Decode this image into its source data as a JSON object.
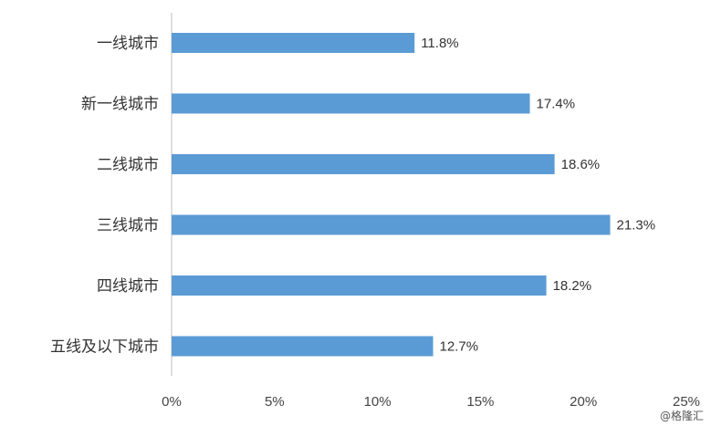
{
  "chart_data": {
    "type": "bar",
    "orientation": "horizontal",
    "categories": [
      "一线城市",
      "新一线城市",
      "二线城市",
      "三线城市",
      "四线城市",
      "五线及以下城市"
    ],
    "values": [
      11.8,
      17.4,
      18.6,
      21.3,
      18.2,
      12.7
    ],
    "value_labels": [
      "11.8%",
      "17.4%",
      "18.6%",
      "21.3%",
      "18.2%",
      "12.7%"
    ],
    "xlim": [
      0,
      25
    ],
    "x_ticks": [
      0,
      5,
      10,
      15,
      20,
      25
    ],
    "x_tick_labels": [
      "0%",
      "5%",
      "10%",
      "15%",
      "20%",
      "25%"
    ],
    "grid": false,
    "bar_color": "#5B9BD5"
  },
  "watermark": "@格隆汇"
}
